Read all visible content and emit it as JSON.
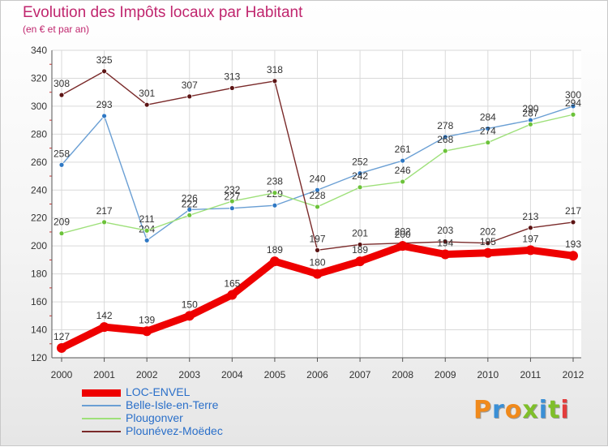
{
  "page": {
    "title": "Evolution des Impôts locaux par Habitant",
    "subtitle": "(en € et par an)",
    "logo": "Proxiti",
    "logo_colors": [
      "#f08a1c",
      "#3a8fd6",
      "#f08a1c",
      "#7fbf2a",
      "#3a8fd6",
      "#7fbf2a",
      "#e23c3c"
    ]
  },
  "chart_data": {
    "type": "line",
    "title": "Evolution des Impôts locaux par Habitant",
    "subtitle": "(en € et par an)",
    "x": [
      "2000",
      "2001",
      "2002",
      "2003",
      "2004",
      "2005",
      "2006",
      "2007",
      "2008",
      "2009",
      "2010",
      "2011",
      "2012"
    ],
    "ylim": [
      120,
      340
    ],
    "yticks": [
      120,
      140,
      160,
      180,
      200,
      220,
      240,
      260,
      280,
      300,
      320,
      340
    ],
    "grid": true,
    "legend_position": "bottom-left",
    "series": [
      {
        "name": "LOC-ENVEL",
        "color": "#ee0000",
        "values": [
          127,
          142,
          139,
          150,
          165,
          189,
          180,
          189,
          200,
          194,
          195,
          197,
          193
        ],
        "labels": [
          "127",
          "142",
          "139",
          "150",
          "165",
          "189",
          "180",
          "189",
          "200",
          "194",
          "195",
          "197",
          "193"
        ]
      },
      {
        "name": "Belle-Isle-en-Terre",
        "color": "#6a9fd4",
        "marker": "#2f78c4",
        "values": [
          258,
          293,
          204,
          226,
          227,
          229,
          240,
          252,
          261,
          278,
          284,
          290,
          300
        ],
        "labels": [
          "258",
          "293",
          "204",
          "226",
          "227",
          "229",
          "240",
          "252",
          "261",
          "278",
          "284",
          "290",
          "300"
        ]
      },
      {
        "name": "Plougonver",
        "color": "#9ee07a",
        "marker": "#6cc23a",
        "values": [
          209,
          217,
          211,
          222,
          232,
          238,
          228,
          242,
          246,
          268,
          274,
          287,
          294
        ],
        "labels": [
          "209",
          "217",
          "211",
          "222",
          "232",
          "238",
          "228",
          "242",
          "246",
          "268",
          "274",
          "287",
          "294"
        ]
      },
      {
        "name": "Plounévez-Moëdec",
        "color": "#7a2a2a",
        "marker": "#5c1414",
        "values": [
          308,
          325,
          301,
          307,
          313,
          318,
          197,
          201,
          202,
          203,
          202,
          213,
          217
        ],
        "labels": [
          "308",
          "325",
          "301",
          "307",
          "313",
          "318",
          "197",
          "201",
          "202",
          "203",
          "202",
          "213",
          "217"
        ]
      }
    ]
  }
}
